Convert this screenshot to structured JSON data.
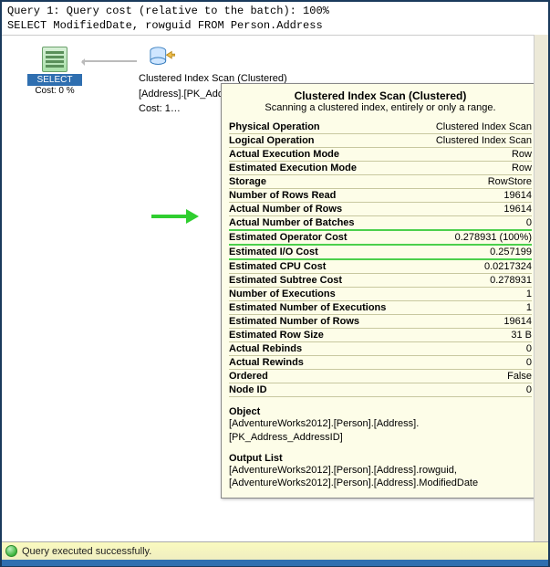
{
  "query": {
    "header_line1": "Query 1: Query cost (relative to the batch): 100%",
    "header_line2": "SELECT ModifiedDate, rowguid FROM Person.Address"
  },
  "plan": {
    "select": {
      "label": "SELECT",
      "cost": "Cost: 0 %"
    },
    "scan": {
      "line1": "Clustered Index Scan (Clustered)",
      "line2": "[Address].[PK_Addr…",
      "line3": "Cost: 1…"
    }
  },
  "tooltip": {
    "title": "Clustered Index Scan (Clustered)",
    "subtitle": "Scanning a clustered index, entirely or only a range.",
    "rows": [
      {
        "k": "Physical Operation",
        "v": "Clustered Index Scan",
        "hl": false
      },
      {
        "k": "Logical Operation",
        "v": "Clustered Index Scan",
        "hl": false
      },
      {
        "k": "Actual Execution Mode",
        "v": "Row",
        "hl": false
      },
      {
        "k": "Estimated Execution Mode",
        "v": "Row",
        "hl": false
      },
      {
        "k": "Storage",
        "v": "RowStore",
        "hl": false
      },
      {
        "k": "Number of Rows Read",
        "v": "19614",
        "hl": false
      },
      {
        "k": "Actual Number of Rows",
        "v": "19614",
        "hl": false
      },
      {
        "k": "Actual Number of Batches",
        "v": "0",
        "hl": false
      },
      {
        "k": "Estimated Operator Cost",
        "v": "0.278931 (100%)",
        "hl": true
      },
      {
        "k": "Estimated I/O Cost",
        "v": "0.257199",
        "hl": true
      },
      {
        "k": "Estimated CPU Cost",
        "v": "0.0217324",
        "hl": false
      },
      {
        "k": "Estimated Subtree Cost",
        "v": "0.278931",
        "hl": false
      },
      {
        "k": "Number of Executions",
        "v": "1",
        "hl": false
      },
      {
        "k": "Estimated Number of Executions",
        "v": "1",
        "hl": false
      },
      {
        "k": "Estimated Number of Rows",
        "v": "19614",
        "hl": false
      },
      {
        "k": "Estimated Row Size",
        "v": "31 B",
        "hl": false
      },
      {
        "k": "Actual Rebinds",
        "v": "0",
        "hl": false
      },
      {
        "k": "Actual Rewinds",
        "v": "0",
        "hl": false
      },
      {
        "k": "Ordered",
        "v": "False",
        "hl": false
      },
      {
        "k": "Node ID",
        "v": "0",
        "hl": false
      }
    ],
    "object_header": "Object",
    "object_value": "[AdventureWorks2012].[Person].[Address].[PK_Address_AddressID]",
    "output_header": "Output List",
    "output_value": "[AdventureWorks2012].[Person].[Address].rowguid, [AdventureWorks2012].[Person].[Address].ModifiedDate"
  },
  "status": {
    "text": "Query executed successfully."
  },
  "colors": {
    "border": "#1a3a5c",
    "tooltip_bg": "#fdfde8",
    "highlight": "#4cd04c",
    "arrow": "#2fce2f",
    "status_bg": "#f6f4c8",
    "accent": "#2f6fb0"
  }
}
